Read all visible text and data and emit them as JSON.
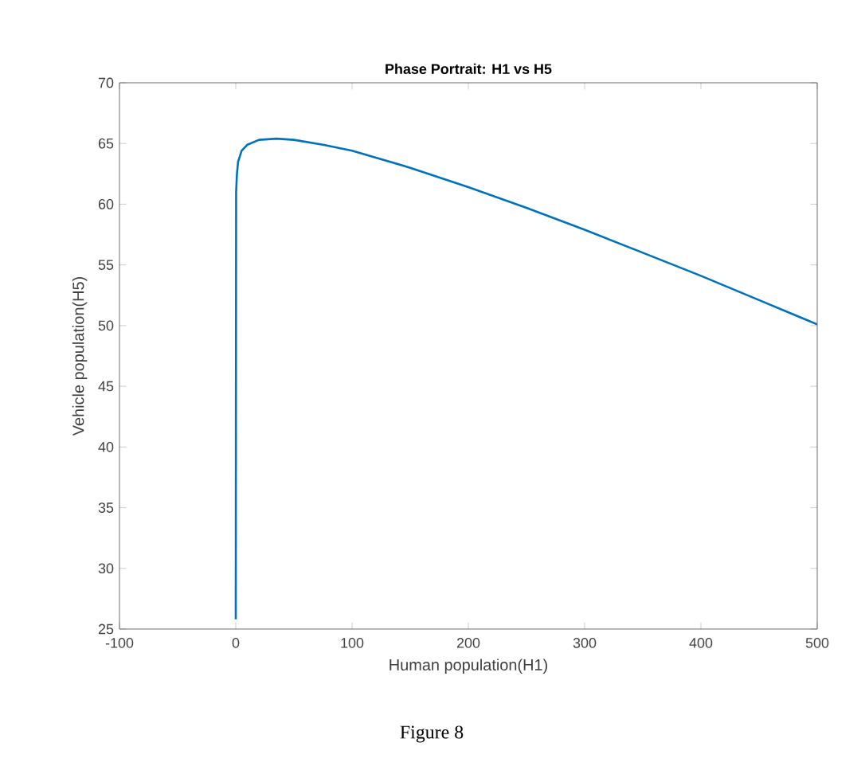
{
  "chart_data": {
    "type": "line",
    "title": "Phase Portrait: H1 vs H5",
    "xlabel": "Human population(H1)",
    "ylabel": "Vehicle population(H5)",
    "annotations": [
      "Figure 8"
    ],
    "x": [
      0,
      0.3,
      1,
      2,
      5,
      10,
      20,
      35,
      50,
      75,
      100,
      150,
      200,
      250,
      300,
      350,
      400,
      450,
      500
    ],
    "series": [
      {
        "color": "#0072bd",
        "values": [
          25.8,
          61,
          62.5,
          63.5,
          64.4,
          64.9,
          65.3,
          65.4,
          65.3,
          64.9,
          64.4,
          63.0,
          61.4,
          59.7,
          57.9,
          56.0,
          54.1,
          52.1,
          50.1
        ]
      }
    ],
    "xlim": [
      -100,
      500
    ],
    "ylim": [
      25,
      70
    ],
    "xticks": [
      -100,
      0,
      100,
      200,
      300,
      400,
      500
    ],
    "yticks": [
      25,
      30,
      35,
      40,
      45,
      50,
      55,
      60,
      65,
      70
    ],
    "grid": false,
    "marker": "none",
    "line_style": "solid"
  }
}
